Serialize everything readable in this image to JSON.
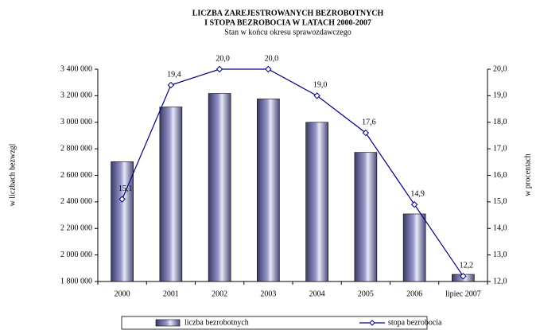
{
  "chart_data": {
    "type": "bar",
    "title": [
      "LICZBA ZAREJESTROWANYCH BEZROBOTNYCH",
      "I STOPA BEZROBOCIA W LATACH 2000-2007"
    ],
    "subtitle": "Stan w końcu okresu sprawozdawczego",
    "y_label": "w liczbach bezwzgl",
    "y2_label": "w procentach",
    "categories": [
      "2000",
      "2001",
      "2002",
      "2003",
      "2004",
      "2005",
      "2006",
      "lipiec 2007"
    ],
    "series": [
      {
        "name": "liczba bezrobotnych",
        "type": "bar",
        "color": "#9999cc",
        "values": [
          2702600,
          3115100,
          3217000,
          3175700,
          2999600,
          2773000,
          2309400,
          1853700
        ]
      },
      {
        "name": "stopa bezrobocia",
        "type": "line",
        "axis": "y2",
        "color": "#000080",
        "values": [
          15.1,
          19.4,
          20.0,
          20.0,
          19.0,
          17.6,
          14.9,
          12.2
        ],
        "value_labels": [
          "15,1",
          "19,4",
          "20,0",
          "20,0",
          "19,0",
          "17,6",
          "14,9",
          "12,2"
        ]
      }
    ],
    "ylim": [
      1800000,
      3400000
    ],
    "yticks": [
      {
        "value": 1800000,
        "label": "1 800 000"
      },
      {
        "value": 2000000,
        "label": "2 000 000"
      },
      {
        "value": 2200000,
        "label": "2 200 000"
      },
      {
        "value": 2400000,
        "label": "2 400 000"
      },
      {
        "value": 2600000,
        "label": "2 600 000"
      },
      {
        "value": 2800000,
        "label": "2 800 000"
      },
      {
        "value": 3000000,
        "label": "3 000 000"
      },
      {
        "value": 3200000,
        "label": "3 200 000"
      },
      {
        "value": 3400000,
        "label": "3 400 000"
      }
    ],
    "y2lim": [
      12,
      20
    ],
    "y2ticks": [
      {
        "value": 12,
        "label": "12,0"
      },
      {
        "value": 13,
        "label": "13,0"
      },
      {
        "value": 14,
        "label": "14,0"
      },
      {
        "value": 15,
        "label": "15,0"
      },
      {
        "value": 16,
        "label": "16,0"
      },
      {
        "value": 17,
        "label": "17,0"
      },
      {
        "value": 18,
        "label": "18,0"
      },
      {
        "value": 19,
        "label": "19,0"
      },
      {
        "value": 20,
        "label": "20,0"
      }
    ],
    "grid": false,
    "legend": "bottom"
  }
}
